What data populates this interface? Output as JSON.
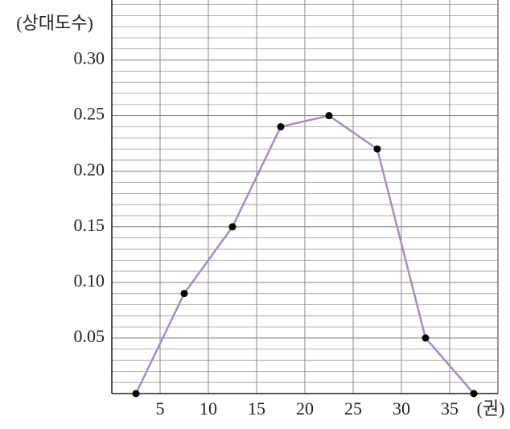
{
  "chart_data": {
    "type": "line",
    "y_axis_label": "(상대도수)",
    "x_axis_label": "(권)",
    "x": [
      2.5,
      7.5,
      12.5,
      17.5,
      22.5,
      27.5,
      32.5,
      37.5
    ],
    "series": [
      {
        "color": "#a98bc4",
        "values": [
          0,
          0.09,
          0.15,
          0.24,
          0.25,
          0.22,
          0.05,
          0
        ]
      }
    ],
    "xlim": [
      0,
      40
    ],
    "xticks": [
      5,
      10,
      15,
      20,
      25,
      30,
      35
    ],
    "ylim": [
      0,
      0.354
    ],
    "yticks": [
      {
        "value": 0.05,
        "label": "0.05"
      },
      {
        "value": 0.1,
        "label": "0.10"
      },
      {
        "value": 0.15,
        "label": "0.15"
      },
      {
        "value": 0.2,
        "label": "0.20"
      },
      {
        "value": 0.25,
        "label": "0.25"
      },
      {
        "value": 0.3,
        "label": "0.30"
      }
    ],
    "grid": true
  }
}
